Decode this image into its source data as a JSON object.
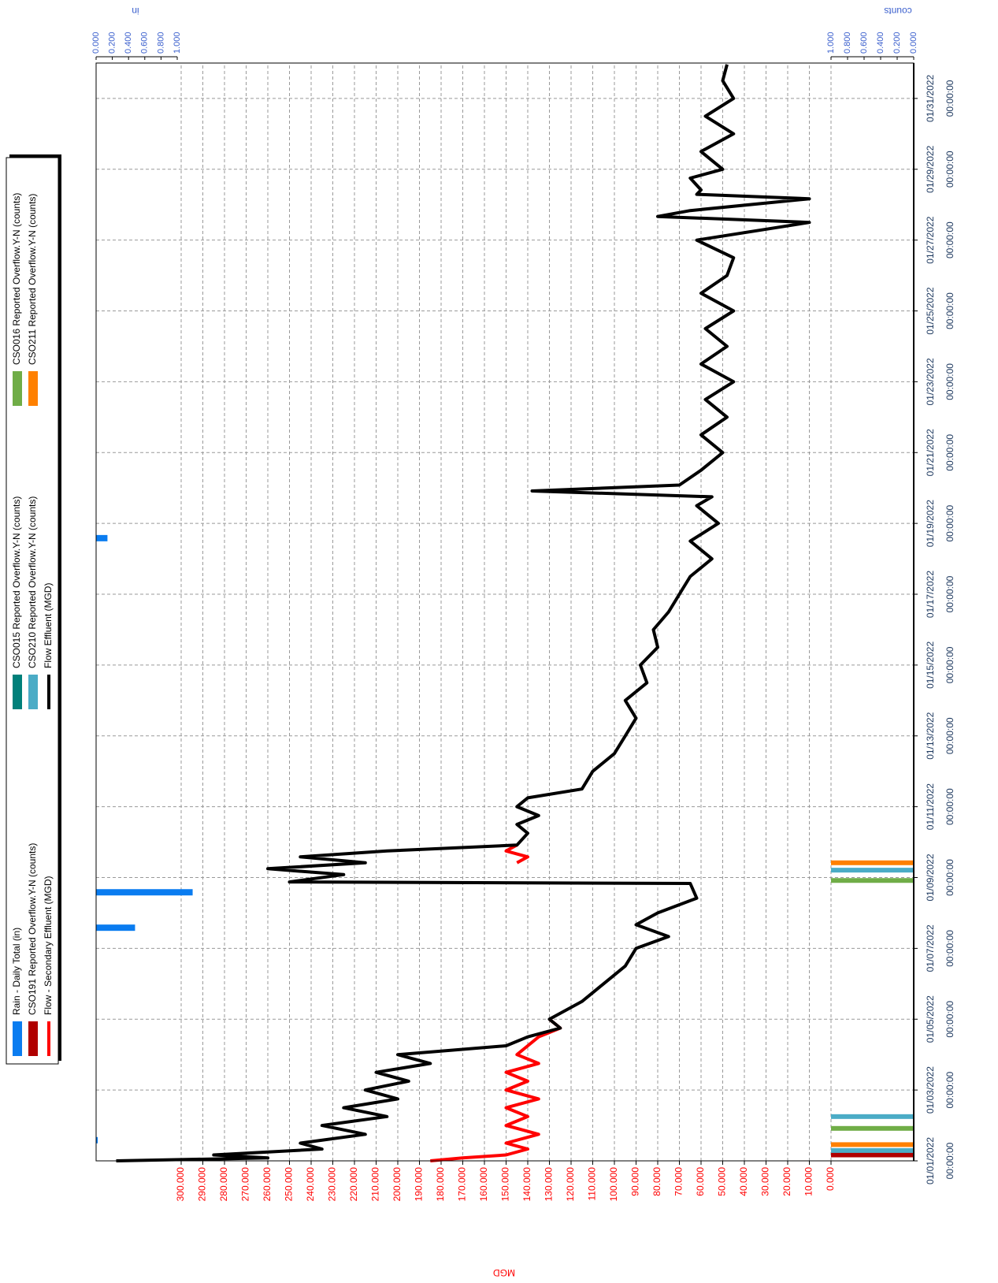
{
  "chart_data": {
    "type": "line",
    "x": [
      "2022-01-01T00:00",
      "2022-01-01T02:00",
      "2022-01-01T04:00",
      "2022-01-01T08:00",
      "2022-01-01T12:00",
      "2022-01-01T18:00",
      "2022-01-02T00:00",
      "2022-01-02T06:00",
      "2022-01-02T12:00",
      "2022-01-02T18:00",
      "2022-01-03T00:00",
      "2022-01-03T06:00",
      "2022-01-03T12:00",
      "2022-01-03T18:00",
      "2022-01-04T00:00",
      "2022-01-04T06:00",
      "2022-01-04T12:00",
      "2022-01-04T18:00",
      "2022-01-05T00:00",
      "2022-01-05T12:00",
      "2022-01-06T00:00",
      "2022-01-06T12:00",
      "2022-01-07T00:00",
      "2022-01-07T08:00",
      "2022-01-07T16:00",
      "2022-01-08T00:00",
      "2022-01-08T10:00",
      "2022-01-08T20:00",
      "2022-01-08T21:00",
      "2022-01-09T02:00",
      "2022-01-09T06:00",
      "2022-01-09T10:00",
      "2022-01-09T14:00",
      "2022-01-09T18:00",
      "2022-01-09T22:00",
      "2022-01-10T06:00",
      "2022-01-10T12:00",
      "2022-01-10T18:00",
      "2022-01-11T00:00",
      "2022-01-11T06:00",
      "2022-01-11T12:00",
      "2022-01-12T00:00",
      "2022-01-12T12:00",
      "2022-01-13T00:00",
      "2022-01-13T12:00",
      "2022-01-14T00:00",
      "2022-01-14T12:00",
      "2022-01-15T00:00",
      "2022-01-15T12:00",
      "2022-01-16T00:00",
      "2022-01-16T12:00",
      "2022-01-17T00:00",
      "2022-01-17T12:00",
      "2022-01-18T00:00",
      "2022-01-18T12:00",
      "2022-01-19T00:00",
      "2022-01-19T12:00",
      "2022-01-19T18:00",
      "2022-01-19T22:00",
      "2022-01-20T02:00",
      "2022-01-20T12:00",
      "2022-01-21T00:00",
      "2022-01-21T12:00",
      "2022-01-22T00:00",
      "2022-01-22T12:00",
      "2022-01-23T00:00",
      "2022-01-23T12:00",
      "2022-01-24T00:00",
      "2022-01-24T12:00",
      "2022-01-25T00:00",
      "2022-01-25T12:00",
      "2022-01-26T00:00",
      "2022-01-26T12:00",
      "2022-01-27T00:00",
      "2022-01-27T12:00",
      "2022-01-27T16:00",
      "2022-01-27T20:00",
      "2022-01-28T04:00",
      "2022-01-28T07:00",
      "2022-01-28T10:00",
      "2022-01-28T18:00",
      "2022-01-29T00:00",
      "2022-01-29T12:00",
      "2022-01-30T00:00",
      "2022-01-30T12:00",
      "2022-01-31T00:00",
      "2022-01-31T12:00",
      "2022-01-31T23:00"
    ],
    "series": [
      {
        "name": "Flow - Secondary Effluent (MGD)",
        "color": "#ff0000",
        "values": [
          185,
          170,
          150,
          140,
          150,
          135,
          150,
          140,
          150,
          135,
          150,
          140,
          150,
          135,
          145,
          140,
          135,
          125,
          130,
          null,
          null,
          null,
          null,
          null,
          null,
          null,
          null,
          null,
          null,
          null,
          null,
          145,
          140,
          150,
          145,
          null,
          null,
          null,
          null,
          null,
          null,
          null,
          null,
          null,
          null,
          null,
          null,
          null,
          null,
          null,
          null,
          null,
          null,
          null,
          null,
          null,
          null,
          null,
          null,
          null,
          null,
          null,
          null,
          null,
          null,
          null,
          null,
          null,
          null,
          null,
          null,
          null,
          null,
          null,
          null,
          null,
          null,
          null,
          null,
          null,
          null,
          null,
          null,
          null,
          null,
          null,
          null,
          null
        ]
      },
      {
        "name": "Flow Effluent (MGD)",
        "color": "#000000",
        "values": [
          330,
          260,
          285,
          235,
          245,
          215,
          235,
          205,
          225,
          200,
          215,
          195,
          210,
          185,
          200,
          150,
          140,
          125,
          130,
          115,
          105,
          95,
          90,
          75,
          90,
          80,
          62,
          65,
          250,
          225,
          260,
          215,
          245,
          205,
          145,
          140,
          145,
          135,
          145,
          140,
          115,
          110,
          100,
          95,
          90,
          95,
          85,
          88,
          80,
          82,
          75,
          70,
          65,
          55,
          65,
          52,
          62,
          55,
          138,
          70,
          60,
          50,
          60,
          48,
          58,
          45,
          60,
          48,
          58,
          45,
          60,
          48,
          45,
          62,
          10,
          80,
          65,
          10,
          62,
          60,
          65,
          50,
          60,
          45,
          58,
          45,
          50,
          48
        ]
      }
    ],
    "bar_series": [
      {
        "name": "Rain - Daily Total (in)",
        "color": "#0a7cf0",
        "axis": "y2",
        "x": [
          "2022-01-01T14:00",
          "2022-01-07T14:00",
          "2022-01-08T14:00",
          "2022-01-18T14:00"
        ],
        "values": [
          0.02,
          0.48,
          1.19,
          0.14
        ]
      },
      {
        "name": "CSO015 Reported Overflow.Y-N (counts)",
        "color": "#00807a",
        "axis": "y3",
        "x": [],
        "values": []
      },
      {
        "name": "CSO016 Reported Overflow.Y-N (counts)",
        "color": "#70ad47",
        "axis": "y3",
        "x": [
          "2022-01-01T22:00",
          "2022-01-08T22:00"
        ],
        "values": [
          1,
          1
        ]
      },
      {
        "name": "CSO191 Reported Overflow.Y-N (counts)",
        "color": "#b00000",
        "axis": "y3",
        "x": [
          "2022-01-01T04:00"
        ],
        "values": [
          1
        ]
      },
      {
        "name": "CSO210 Reported Overflow.Y-N (counts)",
        "color": "#4bacc6",
        "axis": "y3",
        "x": [
          "2022-01-01T07:00",
          "2022-01-02T06:00",
          "2022-01-09T05:00"
        ],
        "values": [
          1,
          1,
          1
        ]
      },
      {
        "name": "CSO211 Reported Overflow.Y-N (counts)",
        "color": "#ff8000",
        "axis": "y3",
        "x": [
          "2022-01-01T11:00",
          "2022-01-09T10:00"
        ],
        "values": [
          1,
          1
        ]
      }
    ],
    "legend_order": [
      "Rain - Daily Total (in)",
      "CSO015 Reported Overflow.Y-N (counts)",
      "CSO016 Reported Overflow.Y-N (counts)",
      "CSO191 Reported Overflow.Y-N (counts)",
      "CSO210 Reported Overflow.Y-N (counts)",
      "CSO211 Reported Overflow.Y-N (counts)",
      "Flow - Secondary Effluent (MGD)",
      "Flow Effluent (MGD)"
    ],
    "ylabel": "MGD",
    "y2label": "in",
    "y3label": "counts",
    "xlim": [
      "2022-01-01T00:00",
      "2022-01-31T23:59"
    ],
    "xticks": [
      {
        "value": "2022-01-01T00:00",
        "label": "01/01/2022 00:00:00"
      },
      {
        "value": "2022-01-03T00:00",
        "label": "01/03/2022 00:00:00"
      },
      {
        "value": "2022-01-05T00:00",
        "label": "01/05/2022 00:00:00"
      },
      {
        "value": "2022-01-07T00:00",
        "label": "01/07/2022 00:00:00"
      },
      {
        "value": "2022-01-09T00:00",
        "label": "01/09/2022 00:00:00"
      },
      {
        "value": "2022-01-11T00:00",
        "label": "01/11/2022 00:00:00"
      },
      {
        "value": "2022-01-13T00:00",
        "label": "01/13/2022 00:00:00"
      },
      {
        "value": "2022-01-15T00:00",
        "label": "01/15/2022 00:00:00"
      },
      {
        "value": "2022-01-17T00:00",
        "label": "01/17/2022 00:00:00"
      },
      {
        "value": "2022-01-19T00:00",
        "label": "01/19/2022 00:00:00"
      },
      {
        "value": "2022-01-21T00:00",
        "label": "01/21/2022 00:00:00"
      },
      {
        "value": "2022-01-23T00:00",
        "label": "01/23/2022 00:00:00"
      },
      {
        "value": "2022-01-25T00:00",
        "label": "01/25/2022 00:00:00"
      },
      {
        "value": "2022-01-27T00:00",
        "label": "01/27/2022 00:00:00"
      },
      {
        "value": "2022-01-29T00:00",
        "label": "01/29/2022 00:00:00"
      },
      {
        "value": "2022-01-31T00:00",
        "label": "01/31/2022 00:00:00"
      }
    ],
    "ylim": [
      0,
      340
    ],
    "yticks": [
      {
        "value": 0,
        "label": "0.000"
      },
      {
        "value": 10,
        "label": "10.000"
      },
      {
        "value": 20,
        "label": "20.000"
      },
      {
        "value": 30,
        "label": "30.000"
      },
      {
        "value": 40,
        "label": "40.000"
      },
      {
        "value": 50,
        "label": "50.000"
      },
      {
        "value": 60,
        "label": "60.000"
      },
      {
        "value": 70,
        "label": "70.000"
      },
      {
        "value": 80,
        "label": "80.000"
      },
      {
        "value": 90,
        "label": "90.000"
      },
      {
        "value": 100,
        "label": "100.000"
      },
      {
        "value": 110,
        "label": "110.000"
      },
      {
        "value": 120,
        "label": "120.000"
      },
      {
        "value": 130,
        "label": "130.000"
      },
      {
        "value": 140,
        "label": "140.000"
      },
      {
        "value": 150,
        "label": "150.000"
      },
      {
        "value": 160,
        "label": "160.000"
      },
      {
        "value": 170,
        "label": "170.000"
      },
      {
        "value": 180,
        "label": "180.000"
      },
      {
        "value": 190,
        "label": "190.000"
      },
      {
        "value": 200,
        "label": "200.000"
      },
      {
        "value": 210,
        "label": "210.000"
      },
      {
        "value": 220,
        "label": "220.000"
      },
      {
        "value": 230,
        "label": "230.000"
      },
      {
        "value": 240,
        "label": "240.000"
      },
      {
        "value": 250,
        "label": "250.000"
      },
      {
        "value": 260,
        "label": "260.000"
      },
      {
        "value": 270,
        "label": "270.000"
      },
      {
        "value": 280,
        "label": "280.000"
      },
      {
        "value": 290,
        "label": "290.000"
      },
      {
        "value": 300,
        "label": "300.000"
      }
    ],
    "y2lim": [
      0,
      1
    ],
    "y2ticks": [
      {
        "value": 0,
        "label": "0.000"
      },
      {
        "value": 0.2,
        "label": "0.200"
      },
      {
        "value": 0.4,
        "label": "0.400"
      },
      {
        "value": 0.6,
        "label": "0.600"
      },
      {
        "value": 0.8,
        "label": "0.800"
      },
      {
        "value": 1,
        "label": "1.000"
      }
    ],
    "y3lim": [
      0,
      1
    ],
    "y3ticks": [
      {
        "value": 0,
        "label": "0.000"
      },
      {
        "value": 0.2,
        "label": "0.200"
      },
      {
        "value": 0.4,
        "label": "0.400"
      },
      {
        "value": 0.6,
        "label": "0.600"
      },
      {
        "value": 0.8,
        "label": "0.800"
      },
      {
        "value": 1,
        "label": "1.000"
      }
    ],
    "grid": true
  }
}
